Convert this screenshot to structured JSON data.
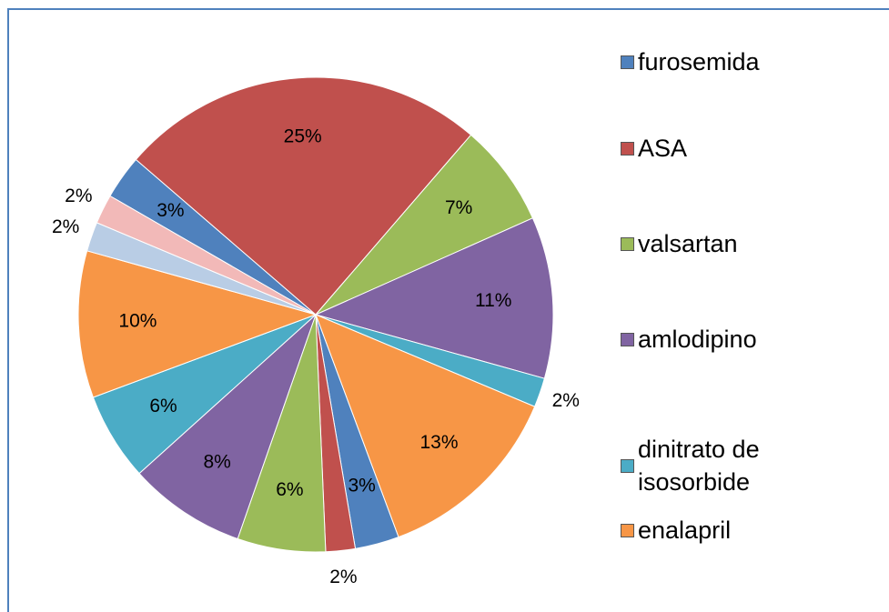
{
  "chart_data": {
    "type": "pie",
    "categories": [
      "furosemida",
      "ASA",
      "valsartan",
      "amlodipino",
      "dinitrato de isosorbide",
      "enalapril",
      null,
      null,
      null,
      null,
      null,
      null,
      null,
      null
    ],
    "values": [
      3,
      25,
      7,
      11,
      2,
      13,
      3,
      2,
      6,
      8,
      6,
      10,
      2,
      2
    ],
    "value_labels": [
      "3%",
      "25%",
      "7%",
      "11%",
      "2%",
      "13%",
      "3%",
      "2%",
      "6%",
      "8%",
      "6%",
      "10%",
      "2%",
      "2%"
    ],
    "colors": [
      "#4f81bd",
      "#c0504d",
      "#9bbb59",
      "#8064a2",
      "#4bacc6",
      "#f79646",
      "#4f81bd",
      "#c0504d",
      "#9bbb59",
      "#8064a2",
      "#4bacc6",
      "#f79646",
      "#b9cde5",
      "#f2b9b8"
    ],
    "legend": "right"
  }
}
